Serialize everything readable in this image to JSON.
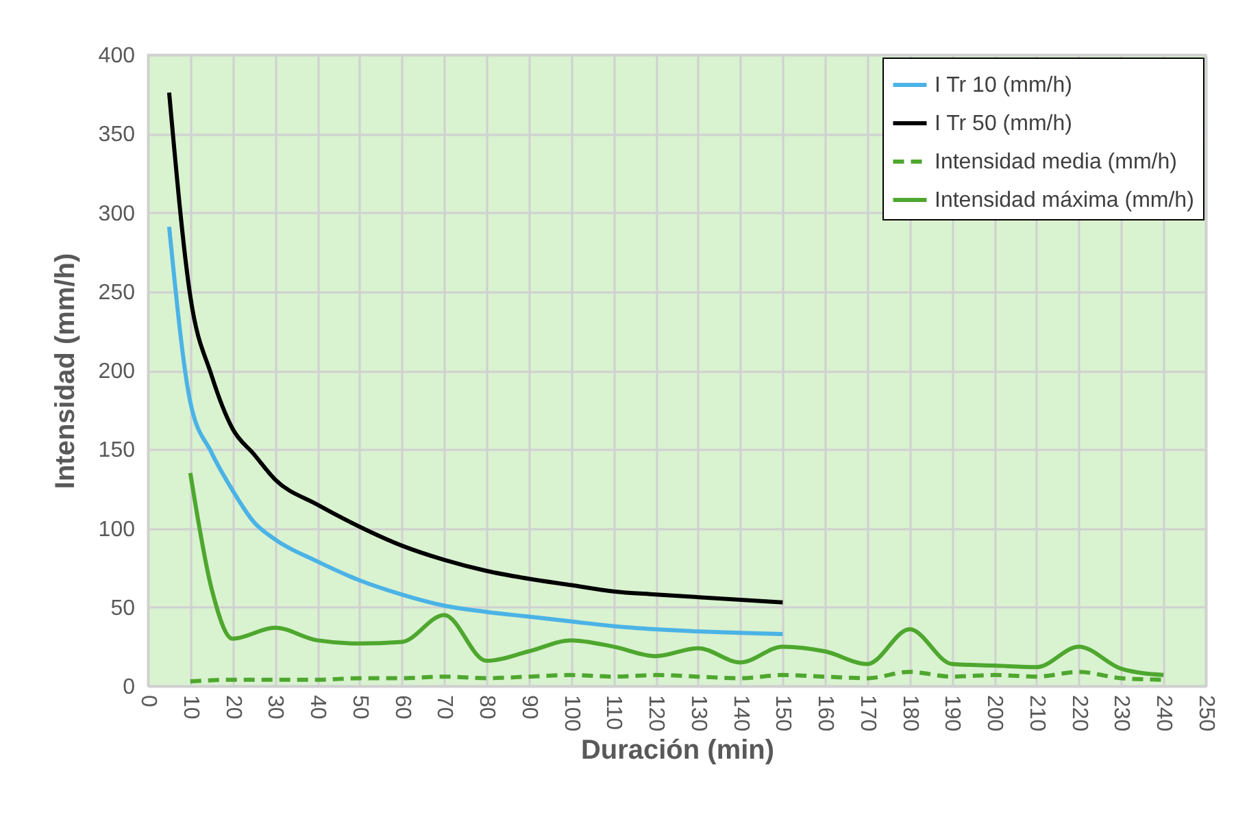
{
  "chart_data": {
    "type": "line",
    "xlabel": "Duración (min)",
    "ylabel": "Intensidad (mm/h)",
    "xlim": [
      0,
      250
    ],
    "xticks": [
      0,
      10,
      20,
      30,
      40,
      50,
      60,
      70,
      80,
      90,
      100,
      110,
      120,
      130,
      140,
      150,
      160,
      170,
      180,
      190,
      200,
      210,
      220,
      230,
      240,
      250
    ],
    "ylim": [
      0,
      400
    ],
    "yticks": [
      0,
      50,
      100,
      150,
      200,
      250,
      300,
      350,
      400
    ],
    "grid": true,
    "legend": "top right",
    "series": [
      {
        "name": "I Tr 10 (mm/h)",
        "color": "#4bb3e6",
        "line_style": "solid",
        "x": [
          5,
          10,
          15,
          20,
          25,
          30,
          40,
          50,
          60,
          70,
          80,
          90,
          100,
          110,
          120,
          150
        ],
        "values": [
          291,
          180,
          148,
          124,
          104,
          93,
          79,
          67,
          58,
          51,
          47,
          44,
          41,
          38,
          36,
          33
        ]
      },
      {
        "name": "I Tr 50 (mm/h)",
        "color": "#000000",
        "line_style": "solid",
        "x": [
          5,
          10,
          15,
          20,
          25,
          30,
          40,
          50,
          60,
          70,
          80,
          90,
          100,
          110,
          120,
          150
        ],
        "values": [
          376,
          247,
          197,
          163,
          147,
          131,
          115,
          101,
          89,
          80,
          73,
          68,
          64,
          60,
          58,
          53
        ]
      },
      {
        "name": "Intensidad media (mm/h)",
        "color": "#4ea72e",
        "line_style": "dashed",
        "x": [
          10,
          20,
          30,
          40,
          50,
          60,
          70,
          80,
          90,
          100,
          110,
          120,
          130,
          140,
          150,
          160,
          170,
          180,
          190,
          200,
          210,
          220,
          230,
          240
        ],
        "values": [
          3,
          4,
          4,
          4,
          5,
          5,
          6,
          5,
          6,
          7,
          6,
          7,
          6,
          5,
          7,
          6,
          5,
          9,
          6,
          7,
          6,
          9,
          5,
          4
        ]
      },
      {
        "name": "Intensidad máxima (mm/h)",
        "color": "#4ea72e",
        "line_style": "solid",
        "x": [
          10,
          15,
          20,
          30,
          40,
          50,
          60,
          70,
          80,
          90,
          100,
          110,
          120,
          130,
          140,
          150,
          160,
          170,
          180,
          190,
          200,
          210,
          220,
          230,
          240
        ],
        "values": [
          135,
          62,
          30,
          37,
          29,
          27,
          28,
          45,
          16,
          22,
          29,
          25,
          19,
          24,
          15,
          25,
          22,
          14,
          36,
          14,
          13,
          12,
          25,
          11,
          7
        ]
      }
    ]
  }
}
